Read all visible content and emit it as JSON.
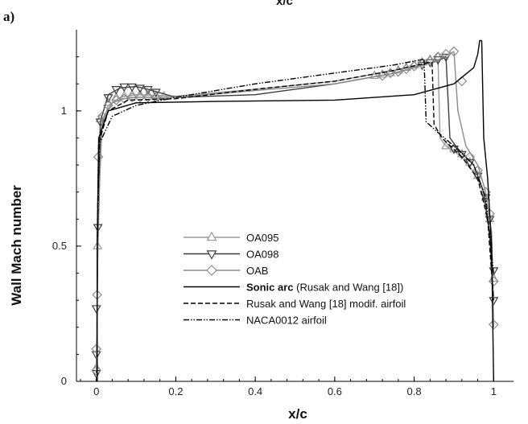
{
  "figure": {
    "panel_label": "a)",
    "top_cut_label": "x/c"
  },
  "chart_data": {
    "type": "line",
    "xlabel": "x/c",
    "ylabel": "Wall Mach number",
    "xlim": [
      -0.05,
      1.05
    ],
    "ylim": [
      0,
      1.3
    ],
    "xticks": [
      0,
      0.2,
      0.4,
      0.6,
      0.8,
      1
    ],
    "xtick_labels": [
      "0",
      "0.2",
      "0.4",
      "0.6",
      "0.8",
      "1"
    ],
    "yticks": [
      0,
      0.5,
      1
    ],
    "ytick_labels": [
      "0",
      "0.5",
      "1"
    ],
    "grid": false,
    "legend_position": "lower-left",
    "series": [
      {
        "name": "OA095",
        "color": "#9a9a9a",
        "dash": "solid",
        "marker": "triangle-up",
        "upper": [
          [
            0.0,
            0.05
          ],
          [
            0.004,
            0.5
          ],
          [
            0.012,
            0.93
          ],
          [
            0.03,
            1.02
          ],
          [
            0.06,
            1.05
          ],
          [
            0.1,
            1.06
          ],
          [
            0.2,
            1.055
          ],
          [
            0.4,
            1.08
          ],
          [
            0.6,
            1.11
          ],
          [
            0.75,
            1.15
          ],
          [
            0.85,
            1.18
          ],
          [
            0.86,
            1.19
          ]
        ],
        "lower": [
          [
            0.86,
            1.19
          ],
          [
            0.865,
            0.9
          ],
          [
            0.88,
            0.87
          ],
          [
            0.93,
            0.82
          ],
          [
            0.97,
            0.72
          ],
          [
            0.99,
            0.55
          ],
          [
            1.0,
            0.3
          ]
        ],
        "markers": [
          [
            0.0,
            0.05
          ],
          [
            0.003,
            0.5
          ],
          [
            0.01,
            0.97
          ],
          [
            0.03,
            1.03
          ],
          [
            0.05,
            1.05
          ],
          [
            0.07,
            1.055
          ],
          [
            0.09,
            1.06
          ],
          [
            0.11,
            1.06
          ],
          [
            0.13,
            1.06
          ],
          [
            0.15,
            1.055
          ],
          [
            0.17,
            1.055
          ],
          [
            0.7,
            1.13
          ],
          [
            0.72,
            1.135
          ],
          [
            0.74,
            1.14
          ],
          [
            0.76,
            1.15
          ],
          [
            0.78,
            1.16
          ],
          [
            0.8,
            1.17
          ],
          [
            0.82,
            1.18
          ],
          [
            0.84,
            1.19
          ],
          [
            0.86,
            1.2
          ],
          [
            0.88,
            0.87
          ],
          [
            0.9,
            0.86
          ],
          [
            0.92,
            0.84
          ],
          [
            0.94,
            0.81
          ],
          [
            0.96,
            0.76
          ],
          [
            0.98,
            0.68
          ],
          [
            0.99,
            0.6
          ],
          [
            1.0,
            0.38
          ]
        ]
      },
      {
        "name": "OA098",
        "color": "#3c3c3c",
        "dash": "solid",
        "marker": "triangle-down",
        "upper": [
          [
            0.0,
            0.03
          ],
          [
            0.004,
            0.55
          ],
          [
            0.01,
            0.96
          ],
          [
            0.03,
            1.06
          ],
          [
            0.06,
            1.085
          ],
          [
            0.1,
            1.09
          ],
          [
            0.13,
            1.08
          ],
          [
            0.2,
            1.05
          ],
          [
            0.4,
            1.06
          ],
          [
            0.6,
            1.1
          ],
          [
            0.75,
            1.14
          ],
          [
            0.85,
            1.18
          ],
          [
            0.88,
            1.2
          ]
        ],
        "lower": [
          [
            0.88,
            1.2
          ],
          [
            0.89,
            0.9
          ],
          [
            0.91,
            0.86
          ],
          [
            0.95,
            0.8
          ],
          [
            0.975,
            0.7
          ],
          [
            0.99,
            0.55
          ],
          [
            1.0,
            0.3
          ]
        ],
        "markers": [
          [
            0.0,
            0.03
          ],
          [
            0.0,
            0.1
          ],
          [
            0.0,
            0.27
          ],
          [
            0.004,
            0.57
          ],
          [
            0.01,
            0.96
          ],
          [
            0.03,
            1.05
          ],
          [
            0.05,
            1.08
          ],
          [
            0.07,
            1.09
          ],
          [
            0.09,
            1.09
          ],
          [
            0.11,
            1.085
          ],
          [
            0.13,
            1.08
          ],
          [
            0.15,
            1.07
          ],
          [
            0.82,
            1.17
          ],
          [
            0.84,
            1.18
          ],
          [
            0.86,
            1.19
          ],
          [
            0.88,
            1.2
          ],
          [
            0.9,
            0.86
          ],
          [
            0.92,
            0.84
          ],
          [
            0.94,
            0.81
          ],
          [
            0.96,
            0.76
          ],
          [
            0.98,
            0.68
          ],
          [
            0.99,
            0.6
          ],
          [
            1.0,
            0.41
          ],
          [
            1.0,
            0.3
          ]
        ]
      },
      {
        "name": "OAB",
        "color": "#8a8a8a",
        "dash": "solid",
        "marker": "diamond",
        "upper": [
          [
            0.0,
            0.04
          ],
          [
            0.004,
            0.6
          ],
          [
            0.015,
            0.97
          ],
          [
            0.04,
            1.03
          ],
          [
            0.07,
            1.045
          ],
          [
            0.1,
            1.05
          ],
          [
            0.2,
            1.05
          ],
          [
            0.4,
            1.075
          ],
          [
            0.6,
            1.1
          ],
          [
            0.75,
            1.14
          ],
          [
            0.85,
            1.18
          ],
          [
            0.9,
            1.22
          ]
        ],
        "lower": [
          [
            0.9,
            1.22
          ],
          [
            0.91,
            1.0
          ],
          [
            0.93,
            0.87
          ],
          [
            0.96,
            0.8
          ],
          [
            0.98,
            0.7
          ],
          [
            0.995,
            0.55
          ],
          [
            1.0,
            0.2
          ]
        ],
        "markers": [
          [
            0.0,
            0.04
          ],
          [
            0.0,
            0.12
          ],
          [
            0.002,
            0.32
          ],
          [
            0.005,
            0.83
          ],
          [
            0.015,
            0.98
          ],
          [
            0.03,
            1.02
          ],
          [
            0.05,
            1.04
          ],
          [
            0.07,
            1.045
          ],
          [
            0.09,
            1.05
          ],
          [
            0.11,
            1.05
          ],
          [
            0.13,
            1.05
          ],
          [
            0.15,
            1.05
          ],
          [
            0.72,
            1.13
          ],
          [
            0.74,
            1.14
          ],
          [
            0.76,
            1.145
          ],
          [
            0.78,
            1.155
          ],
          [
            0.8,
            1.165
          ],
          [
            0.82,
            1.175
          ],
          [
            0.84,
            1.185
          ],
          [
            0.86,
            1.2
          ],
          [
            0.88,
            1.21
          ],
          [
            0.9,
            1.22
          ],
          [
            0.92,
            1.11
          ],
          [
            0.94,
            0.83
          ],
          [
            0.96,
            0.78
          ],
          [
            0.98,
            0.7
          ],
          [
            0.99,
            0.62
          ],
          [
            1.0,
            0.37
          ],
          [
            1.0,
            0.21
          ]
        ]
      },
      {
        "name": "Sonic arc (Rusak and Wang [18])",
        "color": "#000000",
        "dash": "solid",
        "marker": "none",
        "upper": [
          [
            0.002,
            0.0
          ],
          [
            0.002,
            0.5
          ],
          [
            0.006,
            0.9
          ],
          [
            0.03,
            1.0
          ],
          [
            0.1,
            1.03
          ],
          [
            0.3,
            1.035
          ],
          [
            0.6,
            1.04
          ],
          [
            0.8,
            1.06
          ],
          [
            0.9,
            1.1
          ],
          [
            0.95,
            1.16
          ],
          [
            0.96,
            1.21
          ],
          [
            0.965,
            1.26
          ],
          [
            0.97,
            1.26
          ]
        ],
        "lower": [
          [
            0.97,
            1.26
          ],
          [
            0.975,
            0.9
          ],
          [
            0.985,
            0.75
          ],
          [
            0.995,
            0.5
          ],
          [
            1.0,
            0.0
          ]
        ],
        "markers": []
      },
      {
        "name": "Rusak and Wang [18] modif. airfoil",
        "color": "#000000",
        "dash": "dashed",
        "marker": "none",
        "upper": [
          [
            0.002,
            0.0
          ],
          [
            0.002,
            0.5
          ],
          [
            0.006,
            0.88
          ],
          [
            0.03,
            1.0
          ],
          [
            0.08,
            1.04
          ],
          [
            0.2,
            1.045
          ],
          [
            0.4,
            1.08
          ],
          [
            0.6,
            1.11
          ],
          [
            0.75,
            1.15
          ],
          [
            0.84,
            1.18
          ],
          [
            0.845,
            1.18
          ]
        ],
        "lower": [
          [
            0.845,
            1.18
          ],
          [
            0.85,
            0.95
          ],
          [
            0.87,
            0.9
          ],
          [
            0.92,
            0.83
          ],
          [
            0.96,
            0.75
          ],
          [
            0.985,
            0.6
          ],
          [
            1.0,
            0.3
          ]
        ],
        "markers": []
      },
      {
        "name": "NACA0012 airfoil",
        "color": "#000000",
        "dash": "dashdot",
        "marker": "none",
        "upper": [
          [
            0.002,
            0.0
          ],
          [
            0.002,
            0.5
          ],
          [
            0.008,
            0.88
          ],
          [
            0.04,
            0.98
          ],
          [
            0.1,
            1.02
          ],
          [
            0.2,
            1.05
          ],
          [
            0.4,
            1.1
          ],
          [
            0.6,
            1.14
          ],
          [
            0.75,
            1.17
          ],
          [
            0.82,
            1.19
          ],
          [
            0.825,
            1.19
          ]
        ],
        "lower": [
          [
            0.825,
            1.19
          ],
          [
            0.83,
            0.96
          ],
          [
            0.86,
            0.92
          ],
          [
            0.9,
            0.87
          ],
          [
            0.95,
            0.8
          ],
          [
            0.98,
            0.68
          ],
          [
            1.0,
            0.4
          ]
        ],
        "markers": []
      }
    ]
  }
}
